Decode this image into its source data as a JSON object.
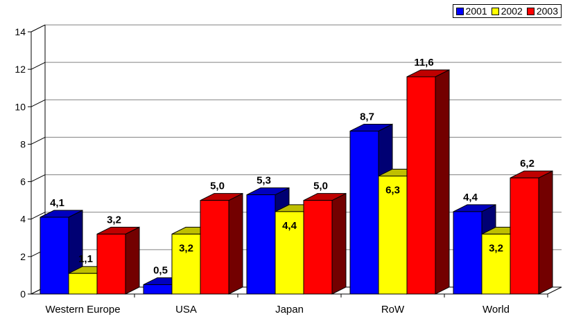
{
  "chart_data": {
    "type": "bar",
    "categories": [
      "Western Europe",
      "USA",
      "Japan",
      "RoW",
      "World"
    ],
    "series": [
      {
        "name": "2001",
        "color": "#0000ff",
        "values": [
          4.1,
          0.5,
          5.3,
          8.7,
          4.4
        ],
        "labels": [
          "4,1",
          "0,5",
          "5,3",
          "8,7",
          "4,4"
        ]
      },
      {
        "name": "2002",
        "color": "#ffff00",
        "values": [
          1.1,
          3.2,
          4.4,
          6.3,
          3.2
        ],
        "labels": [
          "1,1",
          "3,2",
          "4,4",
          "6,3",
          "3,2"
        ]
      },
      {
        "name": "2003",
        "color": "#ff0000",
        "values": [
          3.2,
          5.0,
          5.0,
          11.6,
          6.2
        ],
        "labels": [
          "3,2",
          "5,0",
          "5,0",
          "11,6",
          "6,2"
        ]
      }
    ],
    "yticks": [
      "0",
      "2",
      "4",
      "6",
      "8",
      "10",
      "12",
      "14"
    ],
    "ylim": [
      0,
      14
    ],
    "grid": true,
    "legend": "top-right",
    "title": "",
    "xlabel": "",
    "ylabel": ""
  }
}
